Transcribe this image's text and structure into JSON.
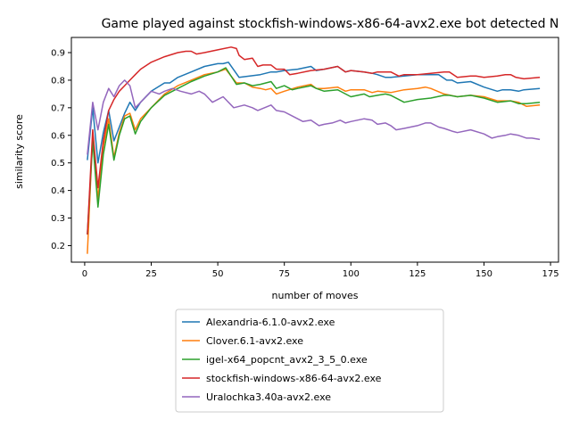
{
  "chart_data": {
    "type": "line",
    "title": "Game played against stockfish-windows-x86-64-avx2.exe bot detected N",
    "xlabel": "number of moves",
    "ylabel": "similarity score",
    "xlim": [
      -5,
      178
    ],
    "ylim": [
      0.14,
      0.955
    ],
    "xticks": [
      0,
      25,
      50,
      75,
      100,
      125,
      150,
      175
    ],
    "yticks": [
      0.2,
      0.3,
      0.4,
      0.5,
      0.6,
      0.7,
      0.8,
      0.9
    ],
    "grid": false,
    "legend_position": "below plot",
    "series": [
      {
        "name": "Alexandria-6.1.0-avx2.exe",
        "color": "#1f77b4",
        "points": [
          [
            1,
            0.51
          ],
          [
            3,
            0.7
          ],
          [
            5,
            0.5
          ],
          [
            7,
            0.61
          ],
          [
            9,
            0.69
          ],
          [
            11,
            0.58
          ],
          [
            13,
            0.63
          ],
          [
            15,
            0.68
          ],
          [
            17,
            0.72
          ],
          [
            19,
            0.69
          ],
          [
            21,
            0.72
          ],
          [
            25,
            0.76
          ],
          [
            30,
            0.79
          ],
          [
            32,
            0.79
          ],
          [
            35,
            0.81
          ],
          [
            40,
            0.83
          ],
          [
            45,
            0.85
          ],
          [
            50,
            0.86
          ],
          [
            52,
            0.86
          ],
          [
            54,
            0.865
          ],
          [
            58,
            0.81
          ],
          [
            62,
            0.815
          ],
          [
            66,
            0.82
          ],
          [
            70,
            0.83
          ],
          [
            72,
            0.83
          ],
          [
            75,
            0.835
          ],
          [
            80,
            0.84
          ],
          [
            85,
            0.85
          ],
          [
            87,
            0.835
          ],
          [
            90,
            0.84
          ],
          [
            95,
            0.85
          ],
          [
            98,
            0.83
          ],
          [
            100,
            0.835
          ],
          [
            105,
            0.83
          ],
          [
            108,
            0.825
          ],
          [
            110,
            0.82
          ],
          [
            113,
            0.81
          ],
          [
            115,
            0.81
          ],
          [
            120,
            0.815
          ],
          [
            125,
            0.82
          ],
          [
            130,
            0.82
          ],
          [
            133,
            0.82
          ],
          [
            136,
            0.8
          ],
          [
            138,
            0.8
          ],
          [
            140,
            0.79
          ],
          [
            145,
            0.795
          ],
          [
            150,
            0.775
          ],
          [
            155,
            0.76
          ],
          [
            157,
            0.765
          ],
          [
            160,
            0.765
          ],
          [
            163,
            0.76
          ],
          [
            165,
            0.765
          ],
          [
            171,
            0.77
          ]
        ]
      },
      {
        "name": "Clover.6.1-avx2.exe",
        "color": "#ff7f0e",
        "points": [
          [
            1,
            0.17
          ],
          [
            3,
            0.6
          ],
          [
            5,
            0.37
          ],
          [
            7,
            0.56
          ],
          [
            9,
            0.66
          ],
          [
            11,
            0.52
          ],
          [
            13,
            0.61
          ],
          [
            15,
            0.67
          ],
          [
            17,
            0.68
          ],
          [
            19,
            0.62
          ],
          [
            21,
            0.66
          ],
          [
            25,
            0.7
          ],
          [
            30,
            0.75
          ],
          [
            35,
            0.78
          ],
          [
            40,
            0.8
          ],
          [
            45,
            0.82
          ],
          [
            50,
            0.83
          ],
          [
            53,
            0.84
          ],
          [
            57,
            0.79
          ],
          [
            60,
            0.79
          ],
          [
            63,
            0.775
          ],
          [
            66,
            0.77
          ],
          [
            68,
            0.765
          ],
          [
            70,
            0.77
          ],
          [
            72,
            0.75
          ],
          [
            75,
            0.76
          ],
          [
            80,
            0.775
          ],
          [
            85,
            0.785
          ],
          [
            87,
            0.77
          ],
          [
            90,
            0.77
          ],
          [
            95,
            0.775
          ],
          [
            98,
            0.76
          ],
          [
            100,
            0.765
          ],
          [
            105,
            0.765
          ],
          [
            108,
            0.755
          ],
          [
            110,
            0.76
          ],
          [
            115,
            0.755
          ],
          [
            120,
            0.765
          ],
          [
            125,
            0.77
          ],
          [
            128,
            0.775
          ],
          [
            130,
            0.77
          ],
          [
            135,
            0.75
          ],
          [
            140,
            0.74
          ],
          [
            145,
            0.745
          ],
          [
            150,
            0.74
          ],
          [
            155,
            0.725
          ],
          [
            160,
            0.725
          ],
          [
            163,
            0.72
          ],
          [
            166,
            0.705
          ],
          [
            171,
            0.71
          ]
        ]
      },
      {
        "name": "igel-x64_popcnt_avx2_3_5_0.exe",
        "color": "#2ca02c",
        "points": [
          [
            1,
            0.24
          ],
          [
            3,
            0.58
          ],
          [
            5,
            0.34
          ],
          [
            7,
            0.53
          ],
          [
            9,
            0.64
          ],
          [
            11,
            0.51
          ],
          [
            13,
            0.6
          ],
          [
            15,
            0.66
          ],
          [
            17,
            0.67
          ],
          [
            19,
            0.605
          ],
          [
            21,
            0.65
          ],
          [
            25,
            0.7
          ],
          [
            30,
            0.745
          ],
          [
            35,
            0.77
          ],
          [
            40,
            0.795
          ],
          [
            45,
            0.815
          ],
          [
            50,
            0.83
          ],
          [
            53,
            0.845
          ],
          [
            57,
            0.785
          ],
          [
            60,
            0.79
          ],
          [
            63,
            0.78
          ],
          [
            66,
            0.785
          ],
          [
            70,
            0.795
          ],
          [
            72,
            0.77
          ],
          [
            75,
            0.78
          ],
          [
            78,
            0.765
          ],
          [
            80,
            0.77
          ],
          [
            85,
            0.78
          ],
          [
            87,
            0.77
          ],
          [
            90,
            0.76
          ],
          [
            95,
            0.765
          ],
          [
            100,
            0.74
          ],
          [
            105,
            0.75
          ],
          [
            107,
            0.74
          ],
          [
            110,
            0.745
          ],
          [
            113,
            0.75
          ],
          [
            115,
            0.745
          ],
          [
            120,
            0.72
          ],
          [
            125,
            0.73
          ],
          [
            130,
            0.735
          ],
          [
            135,
            0.745
          ],
          [
            137,
            0.745
          ],
          [
            140,
            0.74
          ],
          [
            145,
            0.745
          ],
          [
            150,
            0.735
          ],
          [
            155,
            0.72
          ],
          [
            160,
            0.725
          ],
          [
            163,
            0.715
          ],
          [
            166,
            0.715
          ],
          [
            171,
            0.72
          ]
        ]
      },
      {
        "name": "stockfish-windows-x86-64-avx2.exe",
        "color": "#d62728",
        "points": [
          [
            1,
            0.24
          ],
          [
            3,
            0.62
          ],
          [
            5,
            0.41
          ],
          [
            7,
            0.58
          ],
          [
            9,
            0.69
          ],
          [
            11,
            0.73
          ],
          [
            13,
            0.76
          ],
          [
            15,
            0.78
          ],
          [
            17,
            0.8
          ],
          [
            19,
            0.82
          ],
          [
            21,
            0.84
          ],
          [
            25,
            0.865
          ],
          [
            30,
            0.885
          ],
          [
            35,
            0.9
          ],
          [
            38,
            0.905
          ],
          [
            40,
            0.905
          ],
          [
            42,
            0.895
          ],
          [
            45,
            0.9
          ],
          [
            50,
            0.91
          ],
          [
            55,
            0.92
          ],
          [
            57,
            0.915
          ],
          [
            58,
            0.89
          ],
          [
            60,
            0.875
          ],
          [
            63,
            0.88
          ],
          [
            65,
            0.85
          ],
          [
            67,
            0.855
          ],
          [
            70,
            0.855
          ],
          [
            72,
            0.84
          ],
          [
            75,
            0.84
          ],
          [
            77,
            0.82
          ],
          [
            80,
            0.825
          ],
          [
            85,
            0.835
          ],
          [
            90,
            0.84
          ],
          [
            95,
            0.85
          ],
          [
            98,
            0.83
          ],
          [
            100,
            0.835
          ],
          [
            105,
            0.83
          ],
          [
            108,
            0.825
          ],
          [
            110,
            0.83
          ],
          [
            115,
            0.83
          ],
          [
            118,
            0.815
          ],
          [
            120,
            0.82
          ],
          [
            125,
            0.82
          ],
          [
            130,
            0.825
          ],
          [
            135,
            0.83
          ],
          [
            137,
            0.83
          ],
          [
            140,
            0.81
          ],
          [
            145,
            0.815
          ],
          [
            147,
            0.815
          ],
          [
            150,
            0.81
          ],
          [
            155,
            0.815
          ],
          [
            158,
            0.82
          ],
          [
            160,
            0.82
          ],
          [
            162,
            0.81
          ],
          [
            165,
            0.805
          ],
          [
            171,
            0.81
          ]
        ]
      },
      {
        "name": "Uralochka3.40a-avx2.exe",
        "color": "#9467bd",
        "points": [
          [
            1,
            0.53
          ],
          [
            3,
            0.72
          ],
          [
            5,
            0.62
          ],
          [
            7,
            0.72
          ],
          [
            9,
            0.77
          ],
          [
            11,
            0.74
          ],
          [
            13,
            0.78
          ],
          [
            15,
            0.8
          ],
          [
            17,
            0.78
          ],
          [
            19,
            0.7
          ],
          [
            21,
            0.72
          ],
          [
            23,
            0.74
          ],
          [
            25,
            0.76
          ],
          [
            28,
            0.75
          ],
          [
            30,
            0.76
          ],
          [
            33,
            0.77
          ],
          [
            36,
            0.76
          ],
          [
            40,
            0.75
          ],
          [
            43,
            0.76
          ],
          [
            45,
            0.75
          ],
          [
            48,
            0.72
          ],
          [
            50,
            0.73
          ],
          [
            52,
            0.74
          ],
          [
            56,
            0.7
          ],
          [
            60,
            0.71
          ],
          [
            63,
            0.7
          ],
          [
            65,
            0.69
          ],
          [
            70,
            0.71
          ],
          [
            72,
            0.69
          ],
          [
            75,
            0.685
          ],
          [
            80,
            0.66
          ],
          [
            82,
            0.65
          ],
          [
            85,
            0.655
          ],
          [
            88,
            0.635
          ],
          [
            90,
            0.64
          ],
          [
            93,
            0.645
          ],
          [
            96,
            0.655
          ],
          [
            98,
            0.645
          ],
          [
            100,
            0.65
          ],
          [
            105,
            0.66
          ],
          [
            108,
            0.655
          ],
          [
            110,
            0.64
          ],
          [
            113,
            0.645
          ],
          [
            115,
            0.635
          ],
          [
            117,
            0.62
          ],
          [
            120,
            0.625
          ],
          [
            125,
            0.635
          ],
          [
            128,
            0.645
          ],
          [
            130,
            0.645
          ],
          [
            133,
            0.63
          ],
          [
            135,
            0.625
          ],
          [
            138,
            0.615
          ],
          [
            140,
            0.61
          ],
          [
            145,
            0.62
          ],
          [
            150,
            0.605
          ],
          [
            153,
            0.59
          ],
          [
            155,
            0.595
          ],
          [
            158,
            0.6
          ],
          [
            160,
            0.605
          ],
          [
            163,
            0.6
          ],
          [
            166,
            0.59
          ],
          [
            168,
            0.59
          ],
          [
            171,
            0.585
          ]
        ]
      }
    ]
  }
}
